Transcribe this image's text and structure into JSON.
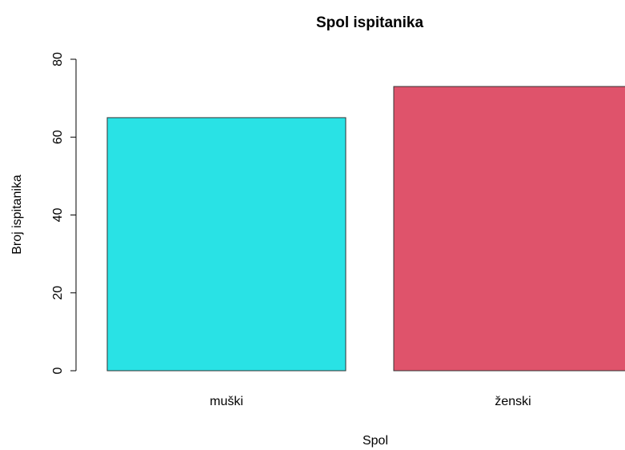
{
  "chart_data": {
    "type": "bar",
    "title": "Spol ispitanika",
    "x_label": "Spol",
    "y_label": "Broj ispitanika",
    "categories": [
      "muški",
      "ženski"
    ],
    "values": [
      65,
      73
    ],
    "colors": [
      "#29e2e5",
      "#df536b"
    ],
    "ylim": [
      0,
      80
    ],
    "yticks": [
      0,
      20,
      40,
      60,
      80
    ]
  }
}
